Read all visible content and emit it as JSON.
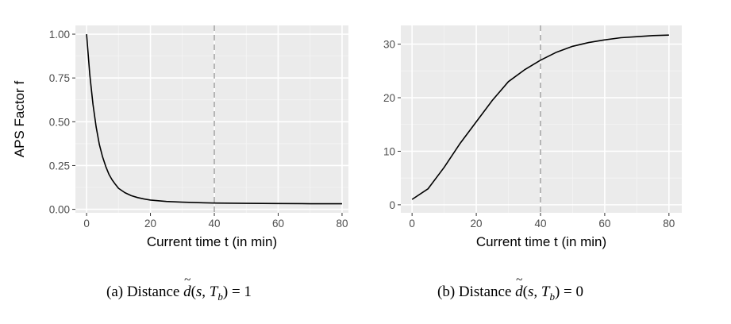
{
  "chart_data": [
    {
      "type": "line",
      "xlabel": "Current time t (in min)",
      "ylabel": "APS Factor f",
      "xlim": [
        -3.5,
        82
      ],
      "ylim": [
        -0.02,
        1.05
      ],
      "x_ticks": [
        0,
        20,
        40,
        60,
        80
      ],
      "x_tick_labels": [
        "0",
        "20",
        "40",
        "60",
        "80"
      ],
      "y_ticks": [
        0,
        0.25,
        0.5,
        0.75,
        1.0
      ],
      "y_tick_labels": [
        "0.00",
        "0.25",
        "0.50",
        "0.75",
        "1.00"
      ],
      "vline_x": 40,
      "grid": true,
      "series": [
        {
          "name": "f",
          "x": [
            0,
            1,
            2,
            3,
            4,
            5,
            6,
            7,
            8,
            9,
            10,
            12,
            14,
            16,
            18,
            20,
            25,
            30,
            35,
            40,
            50,
            60,
            70,
            80
          ],
          "y": [
            1.0,
            0.77,
            0.6,
            0.47,
            0.37,
            0.3,
            0.245,
            0.2,
            0.168,
            0.143,
            0.12,
            0.095,
            0.078,
            0.067,
            0.059,
            0.053,
            0.045,
            0.041,
            0.038,
            0.036,
            0.034,
            0.033,
            0.032,
            0.032
          ]
        }
      ],
      "caption_prefix": "(a) Distance",
      "caption_eq": "= 1"
    },
    {
      "type": "line",
      "xlabel": "Current time t (in min)",
      "ylabel": "APS Factor f",
      "xlim": [
        -3.5,
        84
      ],
      "ylim": [
        -1.5,
        33.5
      ],
      "x_ticks": [
        0,
        20,
        40,
        60,
        80
      ],
      "x_tick_labels": [
        "0",
        "20",
        "40",
        "60",
        "80"
      ],
      "y_ticks": [
        0,
        10,
        20,
        30
      ],
      "y_tick_labels": [
        "0",
        "10",
        "20",
        "30"
      ],
      "vline_x": 40,
      "grid": true,
      "series": [
        {
          "name": "f",
          "x": [
            0,
            5,
            10,
            15,
            20,
            25,
            30,
            35,
            40,
            45,
            50,
            55,
            60,
            65,
            70,
            75,
            80
          ],
          "y": [
            1.0,
            3.0,
            7.0,
            11.5,
            15.5,
            19.5,
            23.0,
            25.2,
            27.0,
            28.5,
            29.6,
            30.3,
            30.8,
            31.2,
            31.4,
            31.6,
            31.7
          ]
        }
      ],
      "caption_prefix": "(b) Distance",
      "caption_eq": "= 0"
    }
  ],
  "caption_math": {
    "d": "d",
    "open": "(",
    "s": "s",
    "comma": ", ",
    "T": "T",
    "b": "b",
    "close": ")"
  }
}
